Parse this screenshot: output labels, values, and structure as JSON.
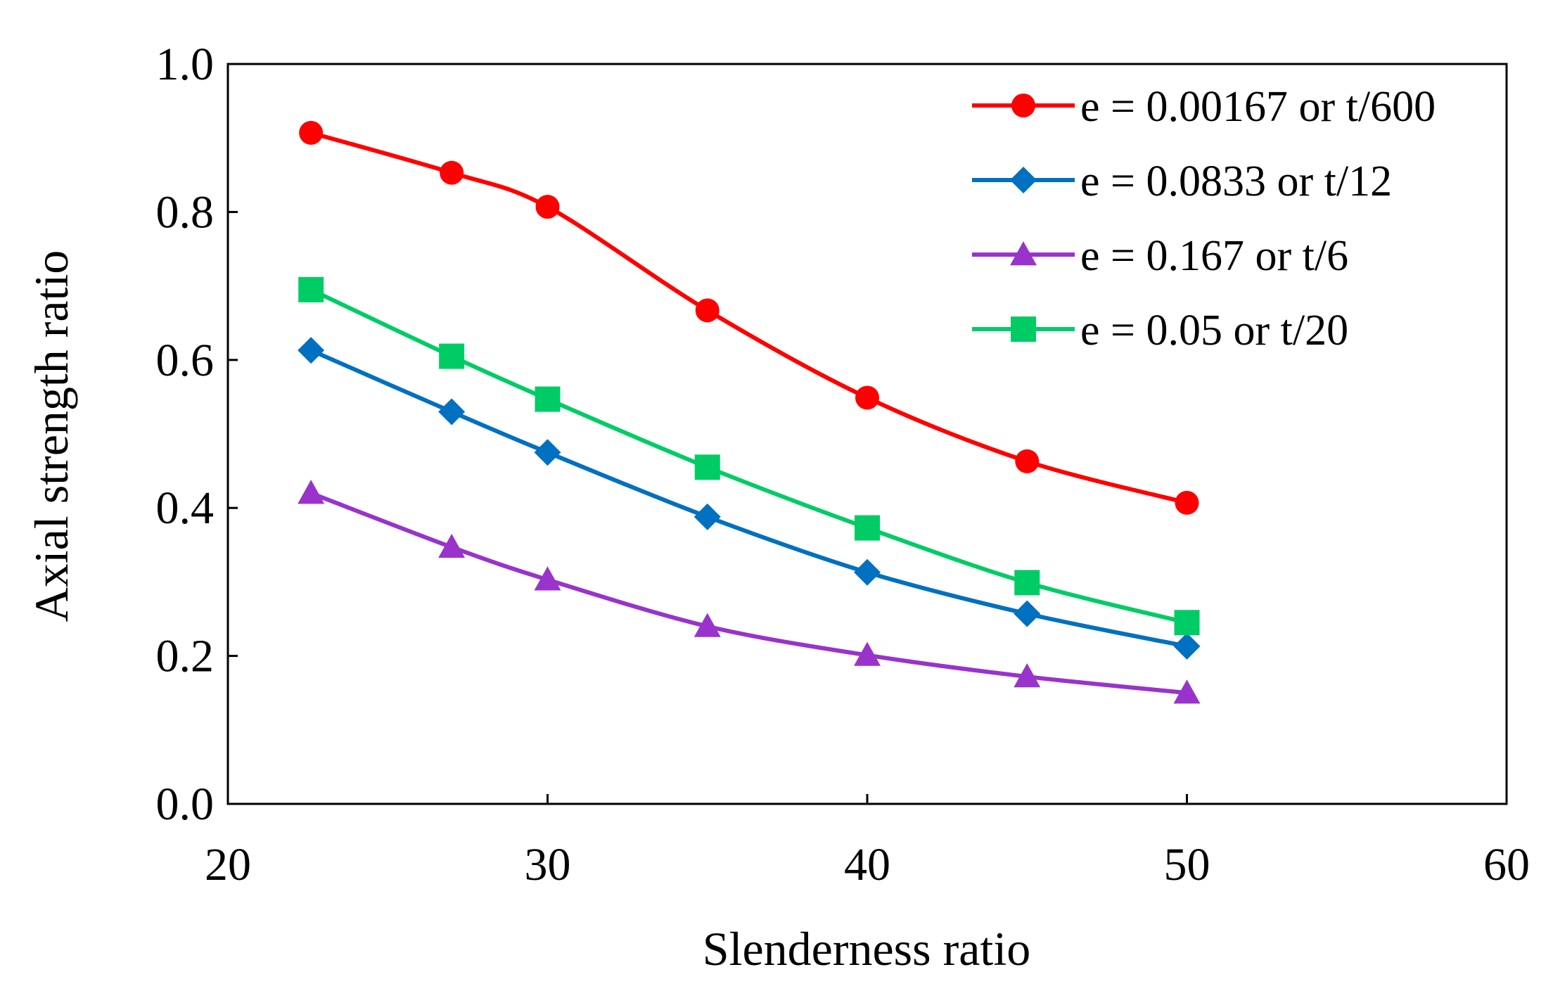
{
  "chart_data": {
    "type": "line",
    "xlabel": "Slenderness ratio",
    "ylabel": "Axial strength ratio",
    "xlim": [
      20,
      60
    ],
    "ylim": [
      0.0,
      1.0
    ],
    "xticks": [
      "20",
      "30",
      "40",
      "50",
      "60"
    ],
    "yticks": [
      "0.0",
      "0.2",
      "0.4",
      "0.6",
      "0.8",
      "1.0"
    ],
    "grid": false,
    "legend_position": "top-right",
    "x": [
      22.6,
      27,
      30,
      35,
      40,
      45,
      50
    ],
    "series": [
      {
        "name": "e = 0.00167 or t/600",
        "values": [
          0.907,
          0.853,
          0.807,
          0.667,
          0.549,
          0.463,
          0.407
        ],
        "color": "#ff0000",
        "marker": "circle"
      },
      {
        "name": "e = 0.0833 or t/12",
        "values": [
          0.613,
          0.53,
          0.475,
          0.388,
          0.313,
          0.257,
          0.213
        ],
        "color": "#0070c0",
        "marker": "diamond"
      },
      {
        "name": "e = 0.167 or t/6",
        "values": [
          0.42,
          0.347,
          0.303,
          0.24,
          0.201,
          0.172,
          0.15
        ],
        "color": "#9933cc",
        "marker": "triangle"
      },
      {
        "name": "e = 0.05 or t/20",
        "values": [
          0.695,
          0.605,
          0.547,
          0.455,
          0.373,
          0.299,
          0.245
        ],
        "color": "#00cc66",
        "marker": "square"
      }
    ]
  }
}
